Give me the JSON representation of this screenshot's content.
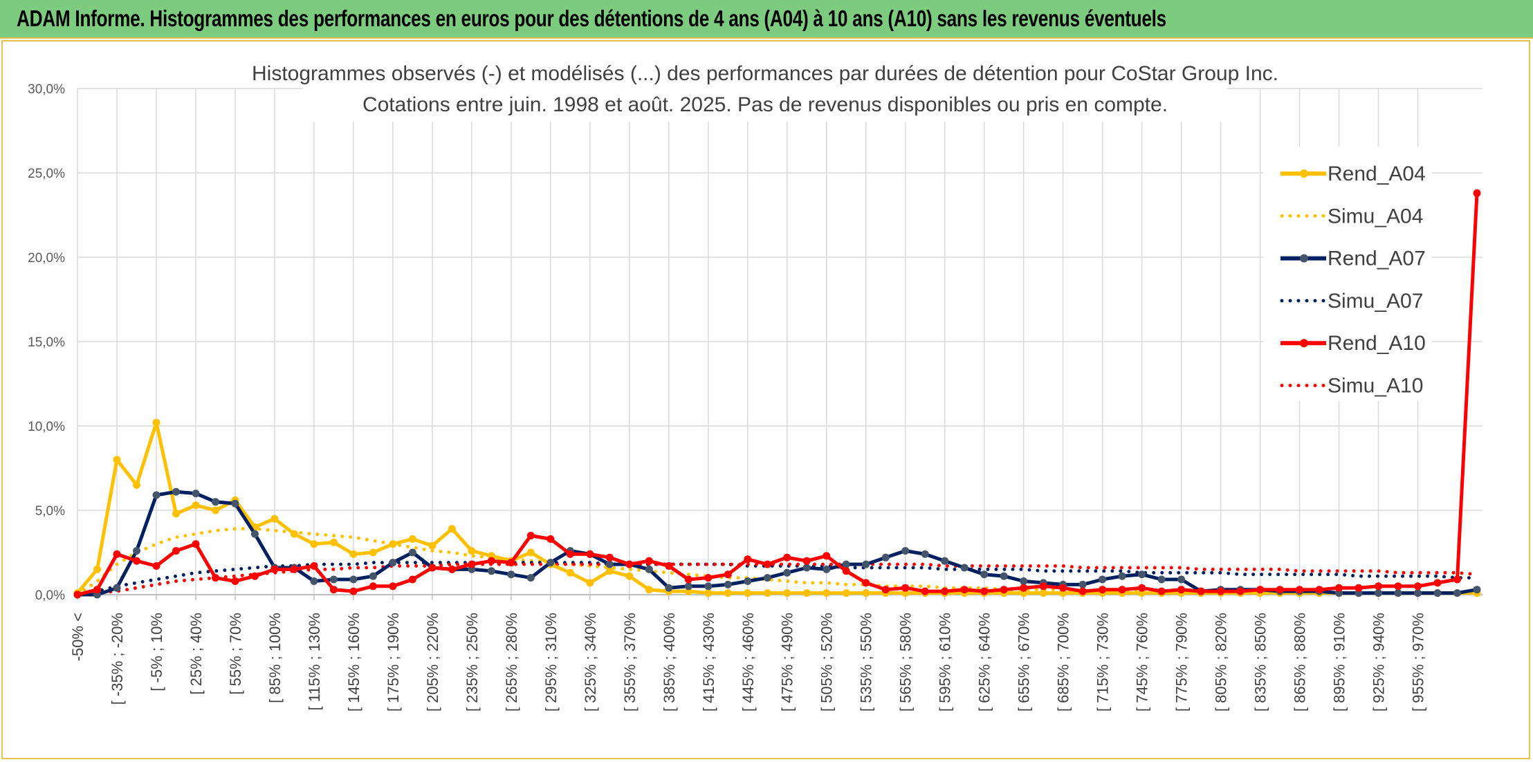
{
  "header": {
    "title": "ADAM Informe. Histogrammes des performances en euros pour des détentions de 4 ans (A04) à 10 ans (A10) sans les revenus éventuels"
  },
  "colors": {
    "header_bg": "#7ccb7e",
    "frame": "#e8c14a",
    "A04": "#ffc000",
    "A07": "#002060",
    "A07_marker": "#44546a",
    "A10": "#ff0000",
    "grid": "#d9d9d9"
  },
  "chart_data": {
    "type": "line",
    "title": "Histogrammes observés (-) et modélisés (...) des performances par durées de détention pour CoStar Group Inc.",
    "subtitle": "Cotations entre juin. 1998 et août. 2025. Pas de revenus disponibles ou pris en compte.",
    "ylim": [
      0,
      30
    ],
    "yticks": [
      "0,0%",
      "5,0%",
      "10,0%",
      "15,0%",
      "20,0%",
      "25,0%",
      "30,0%"
    ],
    "xtick_labels": [
      "-50% <",
      "[ -35% ; -20%",
      "[ -5% ; 10%",
      "[ 25% ; 40%",
      "[ 55% ; 70%",
      "[ 85% ; 100%",
      "[ 115% ; 130%",
      "[ 145% ; 160%",
      "[ 175% ; 190%",
      "[ 205% ; 220%",
      "[ 235% ; 250%",
      "[ 265% ; 280%",
      "[ 295% ; 310%",
      "[ 325% ; 340%",
      "[ 355% ; 370%",
      "[ 385% ; 400%",
      "[ 415% ; 430%",
      "[ 445% ; 460%",
      "[ 475% ; 490%",
      "[ 505% ; 520%",
      "[ 535% ; 550%",
      "[ 565% ; 580%",
      "[ 595% ; 610%",
      "[ 625% ; 640%",
      "[ 655% ; 670%",
      "[ 685% ; 700%",
      "[ 715% ; 730%",
      "[ 745% ; 760%",
      "[ 775% ; 790%",
      "[ 805% ; 820%",
      "[ 835% ; 850%",
      "[ 865% ; 880%",
      "[ 895% ; 910%",
      "[ 925% ; 940%",
      "[ 955% ; 970%"
    ],
    "legend_position": "right",
    "grid": true,
    "series": [
      {
        "name": "Rend_A04",
        "color": "#ffc000",
        "style": "solid",
        "marker": true,
        "values": [
          0.1,
          1.5,
          8.0,
          6.5,
          10.2,
          4.8,
          5.3,
          5.0,
          5.6,
          4.0,
          4.5,
          3.6,
          3.0,
          3.1,
          2.4,
          2.5,
          3.0,
          3.3,
          2.9,
          3.9,
          2.6,
          2.3,
          2.0,
          2.5,
          1.8,
          1.3,
          0.7,
          1.4,
          1.1,
          0.3,
          0.2,
          0.2,
          0.1,
          0.1,
          0.1,
          0.1,
          0.1,
          0.1,
          0.1,
          0.1,
          0.1,
          0.1,
          0.1,
          0.1,
          0.1,
          0.1,
          0.1,
          0.1,
          0.1,
          0.1,
          0.1,
          0.1,
          0.1,
          0.1,
          0.1,
          0.1,
          0.1,
          0.1,
          0.1,
          0.1,
          0.1,
          0.1,
          0.1,
          0.1,
          0.1,
          0.1,
          0.1,
          0.1,
          0.1,
          0.1,
          0.1,
          0.1
        ]
      },
      {
        "name": "Simu_A04",
        "color": "#ffc000",
        "style": "dotted",
        "marker": false,
        "values": [
          0.0,
          0.8,
          1.8,
          2.5,
          3.0,
          3.4,
          3.6,
          3.8,
          3.9,
          3.9,
          3.8,
          3.7,
          3.6,
          3.5,
          3.4,
          3.2,
          3.0,
          2.8,
          2.6,
          2.5,
          2.3,
          2.2,
          2.1,
          2.0,
          1.9,
          1.8,
          1.7,
          1.6,
          1.5,
          1.4,
          1.3,
          1.2,
          1.1,
          1.0,
          1.0,
          0.9,
          0.8,
          0.7,
          0.7,
          0.6,
          0.6,
          0.5,
          0.5,
          0.5,
          0.4,
          0.4,
          0.4,
          0.3,
          0.3,
          0.3,
          0.3,
          0.2,
          0.2,
          0.2,
          0.2,
          0.2,
          0.2,
          0.1,
          0.1,
          0.1,
          0.1,
          0.1,
          0.1,
          0.1,
          0.1,
          0.1,
          0.1,
          0.1,
          0.1,
          0.1,
          0.1,
          0.1
        ]
      },
      {
        "name": "Rend_A07",
        "color": "#002060",
        "style": "solid",
        "marker": true,
        "values": [
          0.0,
          0.0,
          0.4,
          2.6,
          5.9,
          6.1,
          6.0,
          5.5,
          5.4,
          3.6,
          1.6,
          1.6,
          0.8,
          0.9,
          0.9,
          1.1,
          1.9,
          2.5,
          1.6,
          1.5,
          1.5,
          1.4,
          1.2,
          1.0,
          1.9,
          2.6,
          2.4,
          1.8,
          1.8,
          1.5,
          0.4,
          0.5,
          0.5,
          0.6,
          0.8,
          1.0,
          1.3,
          1.6,
          1.5,
          1.8,
          1.8,
          2.2,
          2.6,
          2.4,
          2.0,
          1.6,
          1.2,
          1.1,
          0.8,
          0.7,
          0.6,
          0.6,
          0.9,
          1.1,
          1.2,
          0.9,
          0.9,
          0.2,
          0.3,
          0.3,
          0.3,
          0.2,
          0.2,
          0.2,
          0.1,
          0.1,
          0.1,
          0.1,
          0.1,
          0.1,
          0.1,
          0.3
        ]
      },
      {
        "name": "Simu_A07",
        "color": "#002060",
        "style": "dotted",
        "marker": false,
        "values": [
          0.0,
          0.2,
          0.5,
          0.7,
          0.9,
          1.1,
          1.3,
          1.4,
          1.5,
          1.6,
          1.7,
          1.7,
          1.8,
          1.8,
          1.8,
          1.9,
          1.9,
          1.9,
          1.9,
          1.9,
          1.9,
          1.9,
          1.9,
          1.9,
          1.9,
          1.9,
          1.9,
          1.8,
          1.8,
          1.8,
          1.8,
          1.8,
          1.8,
          1.8,
          1.7,
          1.7,
          1.7,
          1.7,
          1.7,
          1.6,
          1.6,
          1.6,
          1.6,
          1.6,
          1.5,
          1.5,
          1.5,
          1.5,
          1.5,
          1.4,
          1.4,
          1.4,
          1.4,
          1.4,
          1.3,
          1.3,
          1.3,
          1.3,
          1.3,
          1.2,
          1.2,
          1.2,
          1.2,
          1.2,
          1.2,
          1.1,
          1.1,
          1.1,
          1.1,
          1.1,
          1.0,
          1.0
        ]
      },
      {
        "name": "Rend_A10",
        "color": "#ff0000",
        "style": "solid",
        "marker": true,
        "values": [
          0.0,
          0.3,
          2.4,
          2.0,
          1.7,
          2.6,
          3.0,
          1.0,
          0.8,
          1.1,
          1.5,
          1.5,
          1.7,
          0.3,
          0.2,
          0.5,
          0.5,
          0.9,
          1.6,
          1.5,
          1.8,
          2.0,
          1.9,
          3.5,
          3.3,
          2.4,
          2.4,
          2.2,
          1.8,
          2.0,
          1.7,
          0.9,
          1.0,
          1.2,
          2.1,
          1.8,
          2.2,
          2.0,
          2.3,
          1.4,
          0.7,
          0.3,
          0.4,
          0.2,
          0.2,
          0.3,
          0.2,
          0.3,
          0.4,
          0.5,
          0.4,
          0.2,
          0.3,
          0.3,
          0.4,
          0.2,
          0.3,
          0.2,
          0.2,
          0.2,
          0.3,
          0.3,
          0.3,
          0.3,
          0.4,
          0.4,
          0.5,
          0.5,
          0.5,
          0.7,
          0.9,
          23.8
        ]
      },
      {
        "name": "Simu_A10",
        "color": "#ff0000",
        "style": "dotted",
        "marker": false,
        "values": [
          0.0,
          0.1,
          0.2,
          0.4,
          0.6,
          0.8,
          0.9,
          1.0,
          1.1,
          1.2,
          1.3,
          1.4,
          1.5,
          1.5,
          1.6,
          1.6,
          1.7,
          1.7,
          1.7,
          1.8,
          1.8,
          1.8,
          1.8,
          1.8,
          1.8,
          1.8,
          1.8,
          1.8,
          1.8,
          1.8,
          1.8,
          1.8,
          1.8,
          1.8,
          1.8,
          1.8,
          1.8,
          1.8,
          1.8,
          1.8,
          1.8,
          1.8,
          1.8,
          1.8,
          1.7,
          1.7,
          1.7,
          1.7,
          1.7,
          1.7,
          1.7,
          1.6,
          1.6,
          1.6,
          1.6,
          1.6,
          1.6,
          1.5,
          1.5,
          1.5,
          1.5,
          1.5,
          1.4,
          1.4,
          1.4,
          1.4,
          1.4,
          1.3,
          1.3,
          1.3,
          1.3,
          1.2
        ]
      }
    ]
  }
}
